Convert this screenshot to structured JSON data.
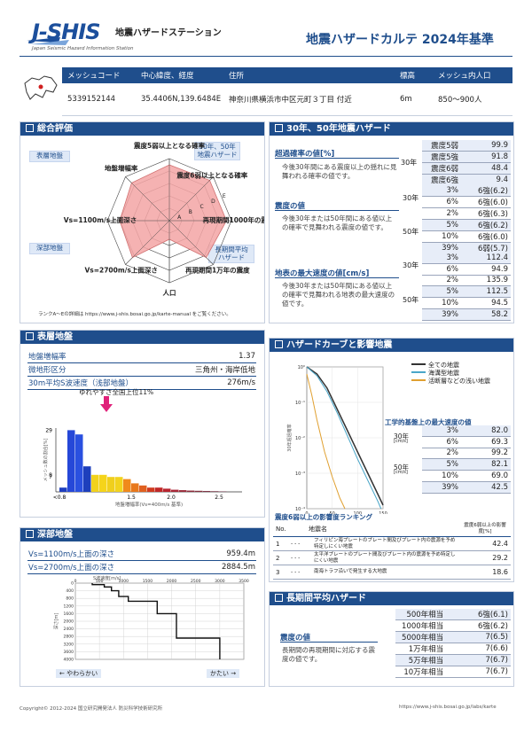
{
  "header": {
    "logo_text": "J-SHIS",
    "station_name": "地震ハザードステーション",
    "station_name_en": "Japan Seismic Hazard Information Station",
    "report_title": "地震ハザードカルテ 2024年基準"
  },
  "info_table": {
    "headers": [
      "メッシュコード",
      "中心緯度、経度",
      "住所",
      "標高",
      "メッシュ内人口"
    ],
    "values": [
      "5339152144",
      "35.4406N,139.6484E",
      "神奈川県横浜市中区元町３丁目 付近",
      "6m",
      "850～900人"
    ]
  },
  "overall": {
    "title": "総合評価",
    "tags": [
      "表層地盤",
      "深部地盤",
      "30年、50年\n地震ハザード",
      "長期間平均\nハザード"
    ],
    "axes": [
      "震度5弱以上となる確率",
      "震度6弱以上となる確率",
      "再現期間1000年の震度",
      "再現期間1万年の震度",
      "人口",
      "Vs=2700m/s上面深さ",
      "Vs=1100m/s上面深さ",
      "地盤増幅率"
    ],
    "rank_letters": [
      "A",
      "B",
      "C",
      "D",
      "E"
    ],
    "ranks": [
      4.5,
      4.6,
      4.6,
      4.2,
      1.5,
      4.2,
      4.0,
      4.3
    ],
    "note": "ランクA～Eの詳細は https://www.j-shis.bosai.go.jp/karte-manual をご覧ください。"
  },
  "hazard30_50": {
    "title": "30年、50年地震ハザード",
    "exceed_title": "超過確率の値[%]",
    "exceed_desc": "今後30年間にある震度以上の揺れに見舞われる確率の値です。",
    "exceed_period": "30年",
    "exceed_rows": [
      {
        "label": "震度5弱",
        "value": "99.9"
      },
      {
        "label": "震度5強",
        "value": "91.8"
      },
      {
        "label": "震度6弱",
        "value": "48.4"
      },
      {
        "label": "震度6強",
        "value": "9.4"
      }
    ],
    "intensity_title": "震度の値",
    "intensity_desc": "今後30年または50年間にある値以上の確率で見舞われる震度の値です。",
    "intensity_30_label": "30年",
    "intensity_30": [
      {
        "label": "3%",
        "value": "6強(6.2)"
      },
      {
        "label": "6%",
        "value": "6強(6.0)"
      }
    ],
    "intensity_50_label": "50年",
    "intensity_50": [
      {
        "label": "2%",
        "value": "6強(6.3)"
      },
      {
        "label": "5%",
        "value": "6強(6.2)"
      },
      {
        "label": "10%",
        "value": "6強(6.0)"
      },
      {
        "label": "39%",
        "value": "6弱(5.7)"
      }
    ],
    "pga_title": "地表の最大速度の値[cm/s]",
    "pga_desc": "今後30年または50年間にある値以上の確率で見舞われる地表の最大速度の値です。",
    "pga_30_label": "30年",
    "pga_30": [
      {
        "label": "3%",
        "value": "112.4"
      },
      {
        "label": "6%",
        "value": "94.9"
      }
    ],
    "pga_50_label": "50年",
    "pga_50": [
      {
        "label": "2%",
        "value": "135.9"
      },
      {
        "label": "5%",
        "value": "112.5"
      },
      {
        "label": "10%",
        "value": "94.5"
      },
      {
        "label": "39%",
        "value": "58.2"
      }
    ]
  },
  "surface": {
    "title": "表層地盤",
    "rows": [
      {
        "label": "地盤増幅率",
        "value": "1.37"
      },
      {
        "label": "微地形区分",
        "value": "三角州・海岸低地"
      },
      {
        "label": "30m平均S波速度（浅部地盤）",
        "value": "276m/s"
      }
    ],
    "marker_label": "ゆれやすさ全国上位11%",
    "y_ticks": [
      "29",
      "8",
      "7"
    ],
    "y_label": "メッシュ数の割合[%]",
    "x_ticks": [
      "<0.8",
      "1.5",
      "2.0",
      "2.5"
    ],
    "x_label": "地盤増幅率(Vs=400m/s 基準)",
    "bars": [
      2,
      29,
      27,
      12,
      8,
      8,
      7,
      7,
      6,
      4,
      3,
      2,
      2,
      1.5,
      1,
      0.8,
      0.6,
      0.5,
      0.4,
      0.3,
      0.2
    ],
    "bar_colors": [
      "#1f3fbf",
      "#2648d8",
      "#2a50e0",
      "#1d3fbc",
      "#f2d21c",
      "#f5d41a",
      "#f0cf1c",
      "#f2d31d",
      "#f08a1c",
      "#e8781c",
      "#e06020",
      "#d03a20",
      "#c02828",
      "#b82430",
      "#a82838",
      "#9a2a3a",
      "#8e2c3c",
      "#84303e",
      "#7c3040",
      "#743042",
      "#6c3044"
    ]
  },
  "deep": {
    "title": "深部地盤",
    "rows": [
      {
        "label": "Vs=1100m/s上面の深さ",
        "value": "959.4m"
      },
      {
        "label": "Vs=2700m/s上面の深さ",
        "value": "2884.5m"
      }
    ],
    "x_label": "S波速度[m/s]",
    "x_ticks": [
      "0",
      "500",
      "1000",
      "1500",
      "2000",
      "2500",
      "3000",
      "3500"
    ],
    "y_label": "深さ[m]",
    "y_ticks": [
      "0",
      "400",
      "800",
      "1200",
      "1600",
      "2000",
      "2400",
      "2800",
      "3200",
      "3600",
      "4000"
    ],
    "profile": [
      [
        350,
        0
      ],
      [
        350,
        80
      ],
      [
        600,
        80
      ],
      [
        600,
        200
      ],
      [
        750,
        200
      ],
      [
        750,
        400
      ],
      [
        900,
        400
      ],
      [
        900,
        700
      ],
      [
        1100,
        700
      ],
      [
        1100,
        950
      ],
      [
        1700,
        950
      ],
      [
        1700,
        1600
      ],
      [
        2100,
        1600
      ],
      [
        2100,
        2885
      ],
      [
        3000,
        2885
      ],
      [
        3000,
        4000
      ]
    ],
    "soft_label": "← やわらかい",
    "hard_label": "かたい →"
  },
  "hazard_curve": {
    "title": "ハザードカーブと影響地震",
    "legend": [
      "全ての地震",
      "海溝型地震",
      "活断層などの浅い地震"
    ],
    "y_label": "30年超過確率",
    "x_label": "工学的基盤上の最大速度[cm/s]",
    "y_ticks": [
      "10⁰",
      "10⁻¹",
      "10⁻²",
      "10⁻³",
      "10⁻⁴"
    ],
    "x_ticks": [
      "0",
      "50",
      "100",
      "150"
    ],
    "eng_title": "工学的基盤上の最大速度の値",
    "eng_30_label": "30年",
    "eng_30": [
      {
        "label": "3%",
        "value": "82.0"
      },
      {
        "label": "6%",
        "value": "69.3"
      }
    ],
    "eng_50_label": "50年",
    "eng_50": [
      {
        "label": "2%",
        "value": "99.2"
      },
      {
        "label": "5%",
        "value": "82.1"
      },
      {
        "label": "10%",
        "value": "69.0"
      },
      {
        "label": "39%",
        "value": "42.5"
      }
    ],
    "unit": "[cm/s]"
  },
  "ranking": {
    "title": "震度6弱以上の影響度ランキング",
    "headers": [
      "No.",
      "地震名",
      "震度6弱以上の影響度[%]"
    ],
    "rows": [
      {
        "no": "1",
        "dash": "- - -",
        "name": "フィリピン海プレートのプレート間及びプレート内の震源を予め特定しにくい地震",
        "value": "42.4"
      },
      {
        "no": "2",
        "dash": "- - -",
        "name": "太平洋プレートのプレート間及びプレート内の震源を予め特定しにくい地震",
        "value": "29.2"
      },
      {
        "no": "3",
        "dash": "- - -",
        "name": "南海トラフ沿いで発生する大地震",
        "value": "18.6"
      }
    ]
  },
  "long_term": {
    "title": "長期間平均ハザード",
    "label": "震度の値",
    "desc": "長期間の再現期間に対応する震度の値です。",
    "rows": [
      {
        "label": "500年相当",
        "value": "6強(6.1)"
      },
      {
        "label": "1000年相当",
        "value": "6強(6.2)"
      },
      {
        "label": "5000年相当",
        "value": "7(6.5)"
      },
      {
        "label": "1万年相当",
        "value": "7(6.6)"
      },
      {
        "label": "5万年相当",
        "value": "7(6.7)"
      },
      {
        "label": "10万年相当",
        "value": "7(6.7)"
      }
    ]
  },
  "footer": {
    "copyright": "Copyright© 2012-2024 国立研究開発法人 防災科学技術研究所",
    "url": "https://www.j-shis.bosai.go.jp/labs/karte"
  },
  "colors": {
    "primary": "#1f4e8c",
    "radar_fill": "#f3a5a5",
    "highlight": "#e7edf8",
    "marker": "#e0217a"
  }
}
